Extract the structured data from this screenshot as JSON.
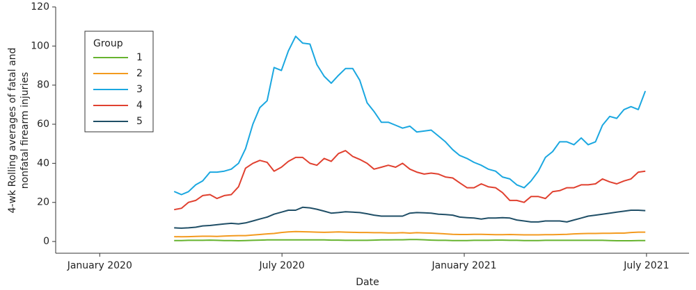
{
  "chart_data": {
    "type": "line",
    "xlabel": "Date",
    "ylabel": [
      "4-wk Rolling averages of fatal and",
      "nonfatal firearm injuries"
    ],
    "legend_title": "Group",
    "legend": "upper left",
    "grid": false,
    "xlim": [
      -1.45,
      19.4
    ],
    "xticks": [
      {
        "value": 0,
        "label": "January 2020"
      },
      {
        "value": 6,
        "label": "July 2020"
      },
      {
        "value": 12,
        "label": "January 2021"
      },
      {
        "value": 18,
        "label": "July 2021"
      }
    ],
    "ylim": [
      -6,
      120
    ],
    "yticks": [
      0,
      20,
      40,
      60,
      80,
      100,
      120
    ],
    "x": [
      2.45,
      2.69,
      2.92,
      3.16,
      3.39,
      3.63,
      3.86,
      4.1,
      4.33,
      4.57,
      4.8,
      5.04,
      5.27,
      5.51,
      5.74,
      5.98,
      6.21,
      6.45,
      6.68,
      6.92,
      7.15,
      7.39,
      7.62,
      7.86,
      8.09,
      8.33,
      8.56,
      8.8,
      9.03,
      9.27,
      9.5,
      9.74,
      9.97,
      10.21,
      10.44,
      10.68,
      10.91,
      11.15,
      11.38,
      11.62,
      11.85,
      12.09,
      12.32,
      12.56,
      12.79,
      13.03,
      13.26,
      13.5,
      13.73,
      13.97,
      14.2,
      14.44,
      14.67,
      14.91,
      15.14,
      15.38,
      15.61,
      15.85,
      16.08,
      16.32,
      16.55,
      16.79,
      17.02,
      17.26,
      17.49,
      17.73,
      17.96
    ],
    "series": [
      {
        "name": "1",
        "color": "#66b32e",
        "values": [
          0.5,
          0.5,
          0.6,
          0.6,
          0.6,
          0.7,
          0.6,
          0.5,
          0.5,
          0.4,
          0.5,
          0.6,
          0.7,
          0.8,
          0.8,
          0.8,
          0.8,
          0.8,
          0.8,
          0.8,
          0.8,
          0.8,
          0.7,
          0.7,
          0.6,
          0.6,
          0.6,
          0.6,
          0.7,
          0.8,
          0.8,
          0.9,
          0.9,
          1,
          1,
          0.9,
          0.7,
          0.6,
          0.6,
          0.5,
          0.5,
          0.5,
          0.6,
          0.6,
          0.6,
          0.7,
          0.7,
          0.6,
          0.6,
          0.5,
          0.5,
          0.5,
          0.6,
          0.6,
          0.6,
          0.6,
          0.6,
          0.6,
          0.6,
          0.6,
          0.6,
          0.5,
          0.4,
          0.4,
          0.4,
          0.5,
          0.5
        ]
      },
      {
        "name": "2",
        "color": "#f39a1e",
        "values": [
          2.5,
          2.4,
          2.5,
          2.6,
          2.7,
          2.7,
          2.6,
          2.8,
          2.9,
          3,
          3,
          3.3,
          3.6,
          3.9,
          4.1,
          4.6,
          4.9,
          5.1,
          5,
          4.9,
          4.8,
          4.7,
          4.8,
          4.9,
          4.8,
          4.7,
          4.6,
          4.6,
          4.5,
          4.5,
          4.4,
          4.4,
          4.5,
          4.3,
          4.5,
          4.4,
          4.3,
          4.1,
          3.9,
          3.7,
          3.6,
          3.6,
          3.7,
          3.7,
          3.6,
          3.5,
          3.5,
          3.6,
          3.5,
          3.4,
          3.4,
          3.4,
          3.5,
          3.5,
          3.6,
          3.7,
          3.9,
          4,
          4.1,
          4.1,
          4.2,
          4.2,
          4.3,
          4.3,
          4.6,
          4.8,
          4.8
        ]
      },
      {
        "name": "3",
        "color": "#1aa7e0",
        "values": [
          25.6,
          24,
          25.5,
          29,
          31,
          35.5,
          35.5,
          36,
          37,
          40,
          47.5,
          60,
          68.5,
          72,
          89,
          87.5,
          97.5,
          105,
          101.5,
          101,
          90.5,
          84.5,
          81,
          85,
          88.5,
          88.5,
          82.5,
          71,
          66.5,
          61,
          61,
          59.5,
          58,
          59,
          56,
          56.5,
          57,
          54,
          51,
          47,
          44,
          42.5,
          40.5,
          39,
          37,
          36,
          33,
          32,
          29,
          27.5,
          31,
          36,
          43,
          46,
          51,
          51,
          49.5,
          53,
          49.5,
          51,
          59.5,
          64,
          63,
          67.5,
          69,
          67.5,
          77
        ]
      },
      {
        "name": "4",
        "color": "#e0402f",
        "values": [
          16.3,
          17,
          20,
          21,
          23.5,
          24,
          22,
          23.5,
          24,
          28,
          37.5,
          40,
          41.5,
          40.5,
          36,
          38,
          41,
          43,
          43,
          40,
          39,
          42.5,
          41,
          45,
          46.5,
          43.5,
          42,
          40,
          37,
          38,
          39,
          38,
          40,
          37,
          35.5,
          34.5,
          35,
          34.5,
          33,
          32.5,
          30,
          27.5,
          27.5,
          29.5,
          28,
          27.5,
          25,
          21,
          21,
          20,
          23,
          23,
          22,
          25.5,
          26,
          27.5,
          27.5,
          29,
          29,
          29.5,
          32,
          30.5,
          29.5,
          31,
          32,
          35.5,
          36
        ]
      },
      {
        "name": "5",
        "color": "#1f4e66",
        "values": [
          7,
          6.8,
          7,
          7.3,
          8,
          8.2,
          8.6,
          9,
          9.3,
          9,
          9.5,
          10.5,
          11.5,
          12.5,
          14,
          15,
          16,
          16,
          17.5,
          17.2,
          16.5,
          15.5,
          14.5,
          14.8,
          15.2,
          15,
          14.8,
          14.2,
          13.5,
          13,
          13,
          13,
          13,
          14.5,
          14.8,
          14.7,
          14.5,
          14,
          13.8,
          13.5,
          12.5,
          12.2,
          12,
          11.5,
          12,
          12,
          12.2,
          12,
          11,
          10.5,
          10,
          10,
          10.5,
          10.5,
          10.5,
          10,
          11,
          12,
          13,
          13.5,
          14,
          14.5,
          15,
          15.5,
          16,
          16,
          15.8
        ]
      }
    ]
  }
}
